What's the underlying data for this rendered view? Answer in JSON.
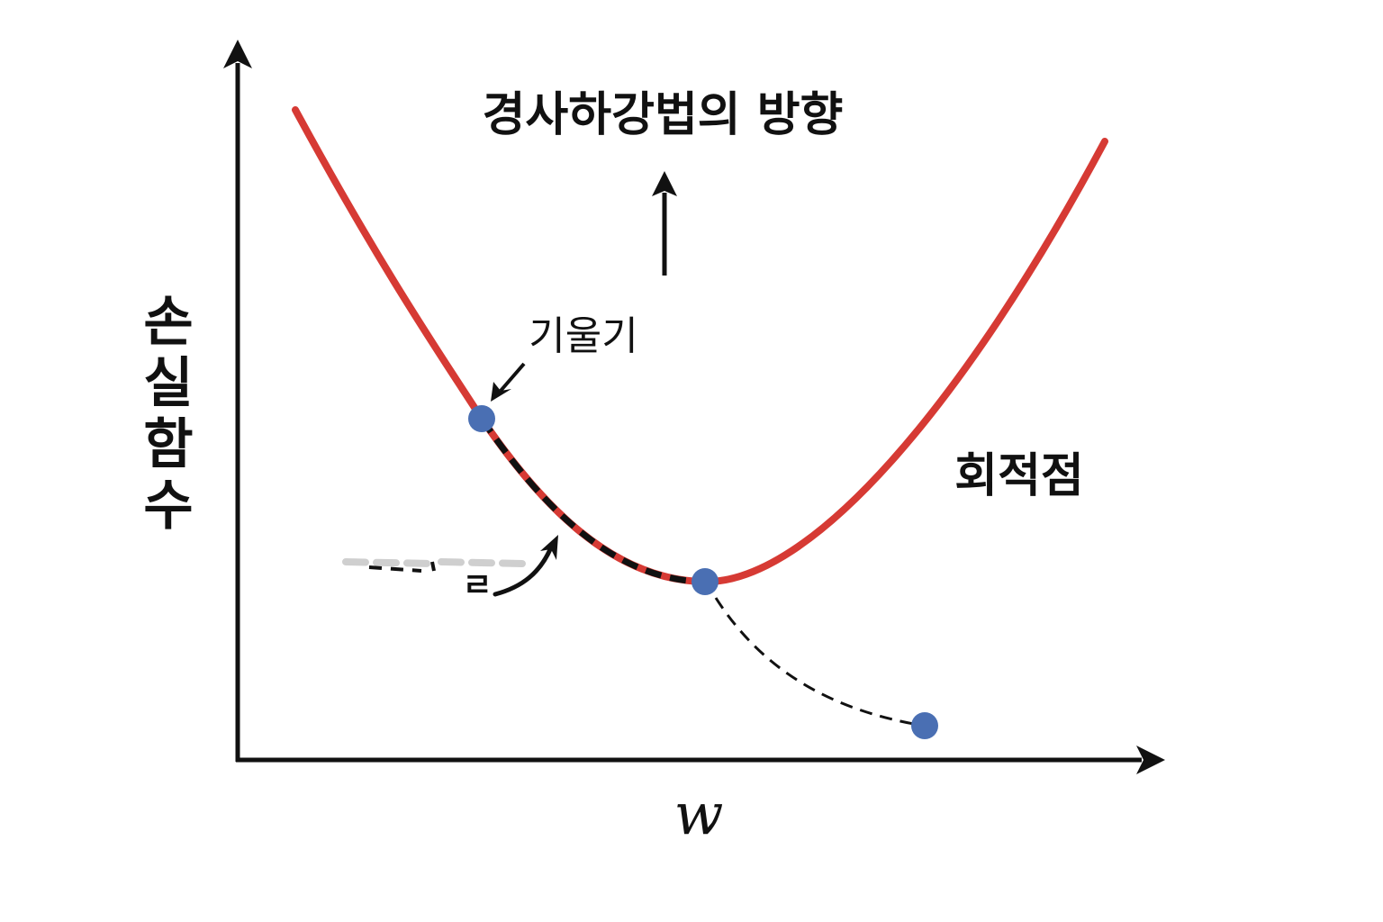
{
  "title": "경사하강법의 방향",
  "y_axis_label": "손실함수",
  "x_axis_label": "w",
  "slope_label": "기울기",
  "optimum_label": "회적점",
  "scribble_label": "ㄹ",
  "colors": {
    "curve": "#d63a34",
    "point": "#4a6fb3",
    "axis": "#111111",
    "background": "#ffffff"
  },
  "points": [
    {
      "name": "slope-point"
    },
    {
      "name": "minimum-point"
    },
    {
      "name": "next-step-point"
    }
  ]
}
